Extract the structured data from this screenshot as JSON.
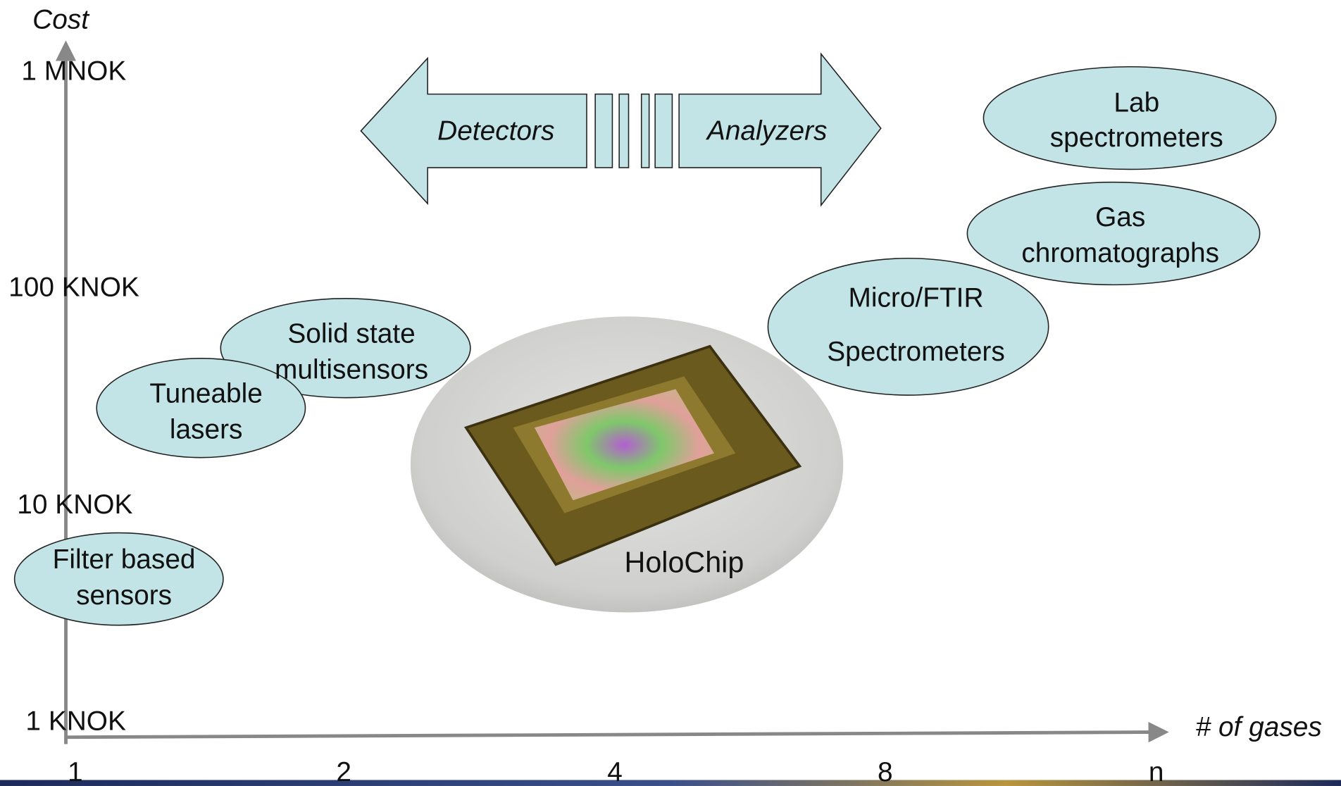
{
  "y_axis": {
    "label": "Cost",
    "ticks": [
      "1 MNOK",
      "100 KNOK",
      "10 KNOK",
      "1 KNOK"
    ]
  },
  "x_axis": {
    "label": "# of gases",
    "ticks": [
      "1",
      "2",
      "4",
      "8",
      "n"
    ]
  },
  "arrows": {
    "left": "Detectors",
    "right": "Analyzers"
  },
  "bubbles": [
    {
      "lines": [
        "Lab",
        "spectrometers"
      ]
    },
    {
      "lines": [
        "Gas",
        "chromatographs"
      ]
    },
    {
      "lines": [
        "Micro/FTIR",
        "Spectrometers"
      ]
    },
    {
      "lines": [
        "Solid state",
        "multisensors"
      ]
    },
    {
      "lines": [
        "Tuneable",
        "lasers"
      ]
    },
    {
      "lines": [
        "Filter based",
        "sensors"
      ]
    }
  ],
  "photo_label": "HoloChip"
}
